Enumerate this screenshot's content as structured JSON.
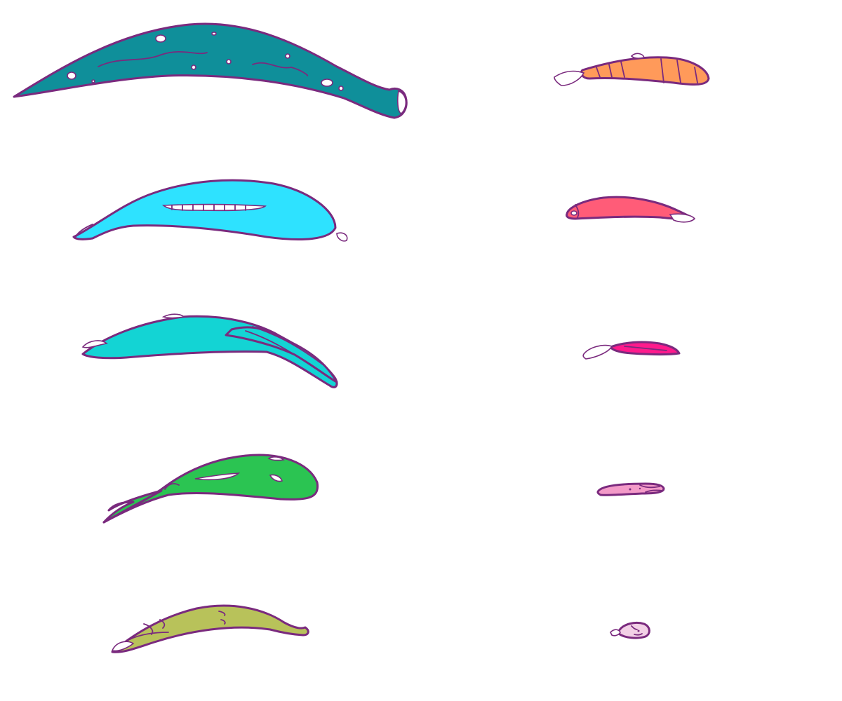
{
  "colors": {
    "outline": "#7a2a7e",
    "background": "#ffffff"
  },
  "creatures": [
    {
      "id": "teal-whale",
      "fill": "#0f8f9a"
    },
    {
      "id": "cyan-smile-whale",
      "fill": "#2ee2ff"
    },
    {
      "id": "aqua-leaf-whale",
      "fill": "#13d4d4"
    },
    {
      "id": "green-whale",
      "fill": "#2bc452"
    },
    {
      "id": "olive-fish",
      "fill": "#b8c25a"
    },
    {
      "id": "orange-striped-fish",
      "fill": "#ff9a5a"
    },
    {
      "id": "red-fish",
      "fill": "#ff5c78"
    },
    {
      "id": "magenta-fish",
      "fill": "#ff1a8c"
    },
    {
      "id": "pink-fish",
      "fill": "#f39ac8"
    },
    {
      "id": "tiny-fish",
      "fill": "#f2d0e6"
    }
  ]
}
